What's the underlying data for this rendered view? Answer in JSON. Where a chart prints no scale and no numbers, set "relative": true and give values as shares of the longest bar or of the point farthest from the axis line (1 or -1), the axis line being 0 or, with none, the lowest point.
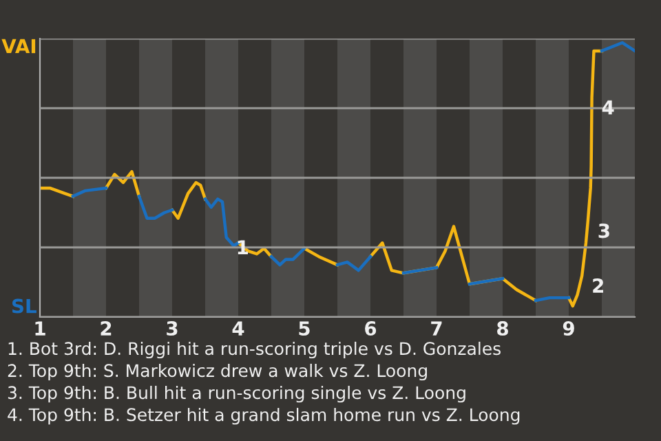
{
  "chart_data": {
    "type": "line",
    "relative": true,
    "x": [
      1.0,
      1.15,
      1.38,
      1.5,
      1.68,
      2.0,
      2.13,
      2.26,
      2.39,
      2.5,
      2.62,
      2.74,
      2.88,
      3.0,
      3.09,
      3.24,
      3.36,
      3.43,
      3.5,
      3.59,
      3.69,
      3.76,
      3.82,
      3.93,
      4.0,
      4.15,
      4.28,
      4.39,
      4.5,
      4.63,
      4.72,
      4.83,
      5.0,
      5.22,
      5.5,
      5.65,
      5.82,
      6.0,
      6.18,
      6.32,
      6.5,
      7.0,
      7.13,
      7.26,
      7.5,
      8.0,
      8.21,
      8.5,
      8.71,
      9.0,
      9.06,
      9.13,
      9.2,
      9.26,
      9.29,
      9.33,
      9.34,
      9.35,
      9.38,
      9.5,
      9.81,
      10.0
    ],
    "series": [
      {
        "name": "VAI",
        "color": "#f5b614",
        "values": [
          0.47,
          0.47,
          0.45,
          0.44,
          null,
          0.47,
          0.52,
          0.49,
          0.53,
          0.44,
          null,
          null,
          null,
          0.39,
          0.36,
          0.45,
          0.49,
          0.48,
          0.43,
          null,
          null,
          null,
          null,
          null,
          0.27,
          0.24,
          0.23,
          0.25,
          0.22,
          null,
          null,
          null,
          0.25,
          0.22,
          0.19,
          null,
          null,
          0.22,
          0.27,
          0.17,
          0.16,
          0.18,
          0.24,
          0.33,
          0.12,
          0.14,
          0.1,
          0.06,
          null,
          0.07,
          0.04,
          0.08,
          0.15,
          0.27,
          0.35,
          0.47,
          0.55,
          0.8,
          0.97,
          0.97,
          null,
          null
        ]
      },
      {
        "name": "SL",
        "color": "#1a6fc0",
        "values": [
          null,
          null,
          null,
          0.44,
          0.46,
          0.47,
          null,
          null,
          null,
          0.44,
          0.36,
          0.36,
          0.38,
          0.39,
          null,
          null,
          null,
          null,
          0.43,
          0.4,
          0.43,
          0.42,
          0.29,
          0.26,
          0.27,
          null,
          null,
          null,
          0.22,
          0.19,
          0.21,
          0.21,
          0.25,
          null,
          0.19,
          0.2,
          0.17,
          0.22,
          null,
          null,
          0.16,
          0.18,
          null,
          null,
          0.12,
          0.14,
          null,
          0.06,
          0.07,
          0.07,
          null,
          null,
          null,
          null,
          null,
          null,
          null,
          null,
          null,
          0.97,
          1.0,
          0.97
        ]
      }
    ],
    "xlim": [
      1,
      10
    ],
    "xticks": [
      1,
      2,
      3,
      4,
      5,
      6,
      7,
      8,
      9
    ],
    "bands": [
      {
        "axis": "x",
        "from": 1.5,
        "to": 2,
        "color": "#4c4b49"
      },
      {
        "axis": "x",
        "from": 2.5,
        "to": 3,
        "color": "#4c4b49"
      },
      {
        "axis": "x",
        "from": 3.5,
        "to": 4,
        "color": "#4c4b49"
      },
      {
        "axis": "x",
        "from": 4.5,
        "to": 5,
        "color": "#4c4b49"
      },
      {
        "axis": "x",
        "from": 5.5,
        "to": 6,
        "color": "#4c4b49"
      },
      {
        "axis": "x",
        "from": 6.5,
        "to": 7,
        "color": "#4c4b49"
      },
      {
        "axis": "x",
        "from": 7.5,
        "to": 8,
        "color": "#4c4b49"
      },
      {
        "axis": "x",
        "from": 8.5,
        "to": 9,
        "color": "#4c4b49"
      },
      {
        "axis": "x",
        "from": 9.5,
        "to": 10,
        "color": "#4c4b49"
      }
    ],
    "grid": "y",
    "marker": "none",
    "line_style": "solid",
    "annotations": [
      {
        "text": "1",
        "x": 3.82,
        "y": 0.29
      },
      {
        "text": "2",
        "x": 9.2,
        "y": 0.15
      },
      {
        "text": "3",
        "x": 9.29,
        "y": 0.35
      },
      {
        "text": "4",
        "x": 9.35,
        "y": 0.8
      },
      "1. Bot 3rd: D. Riggi hit a run-scoring triple vs D. Gonzales",
      "2. Top 9th: S. Markowicz drew a walk vs Z. Loong",
      "3. Top 9th: B. Bull hit a run-scoring single vs Z. Loong",
      "4. Top 9th: B. Setzer hit a grand slam home run vs Z. Loong"
    ]
  }
}
